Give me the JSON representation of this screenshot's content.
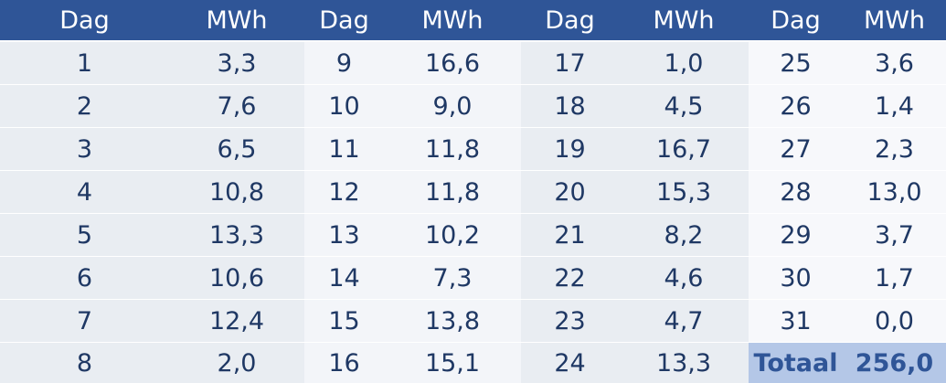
{
  "headers": [
    "Dag",
    "MWh",
    "Dag",
    "MWh",
    "Dag",
    "MWh",
    "Dag",
    "MWh"
  ],
  "rows": [
    [
      {
        "dag": "1",
        "mwh": "3,3"
      },
      {
        "dag": "9",
        "mwh": "16,6"
      },
      {
        "dag": "17",
        "mwh": "1,0"
      },
      {
        "dag": "25",
        "mwh": "3,6"
      }
    ],
    [
      {
        "dag": "2",
        "mwh": "7,6"
      },
      {
        "dag": "10",
        "mwh": "9,0"
      },
      {
        "dag": "18",
        "mwh": "4,5"
      },
      {
        "dag": "26",
        "mwh": "1,4"
      }
    ],
    [
      {
        "dag": "3",
        "mwh": "6,5"
      },
      {
        "dag": "11",
        "mwh": "11,8"
      },
      {
        "dag": "19",
        "mwh": "16,7"
      },
      {
        "dag": "27",
        "mwh": "2,3"
      }
    ],
    [
      {
        "dag": "4",
        "mwh": "10,8"
      },
      {
        "dag": "12",
        "mwh": "11,8"
      },
      {
        "dag": "20",
        "mwh": "15,3"
      },
      {
        "dag": "28",
        "mwh": "13,0"
      }
    ],
    [
      {
        "dag": "5",
        "mwh": "13,3"
      },
      {
        "dag": "13",
        "mwh": "10,2"
      },
      {
        "dag": "21",
        "mwh": "8,2"
      },
      {
        "dag": "29",
        "mwh": "3,7"
      }
    ],
    [
      {
        "dag": "6",
        "mwh": "10,6"
      },
      {
        "dag": "14",
        "mwh": "7,3"
      },
      {
        "dag": "22",
        "mwh": "4,6"
      },
      {
        "dag": "30",
        "mwh": "1,7"
      }
    ],
    [
      {
        "dag": "7",
        "mwh": "12,4"
      },
      {
        "dag": "15",
        "mwh": "13,8"
      },
      {
        "dag": "23",
        "mwh": "4,7"
      },
      {
        "dag": "31",
        "mwh": "0,0"
      }
    ],
    [
      {
        "dag": "8",
        "mwh": "2,0"
      },
      {
        "dag": "16",
        "mwh": "15,1"
      },
      {
        "dag": "24",
        "mwh": "13,3"
      },
      {
        "dag": "Totaal",
        "mwh": "256,0"
      }
    ]
  ],
  "colors": {
    "header_bg": "#2f5597",
    "header_text": "#ffffff",
    "body_text": "#1f3864",
    "total_bg": "#b4c7e7",
    "total_text": "#2f5597"
  }
}
